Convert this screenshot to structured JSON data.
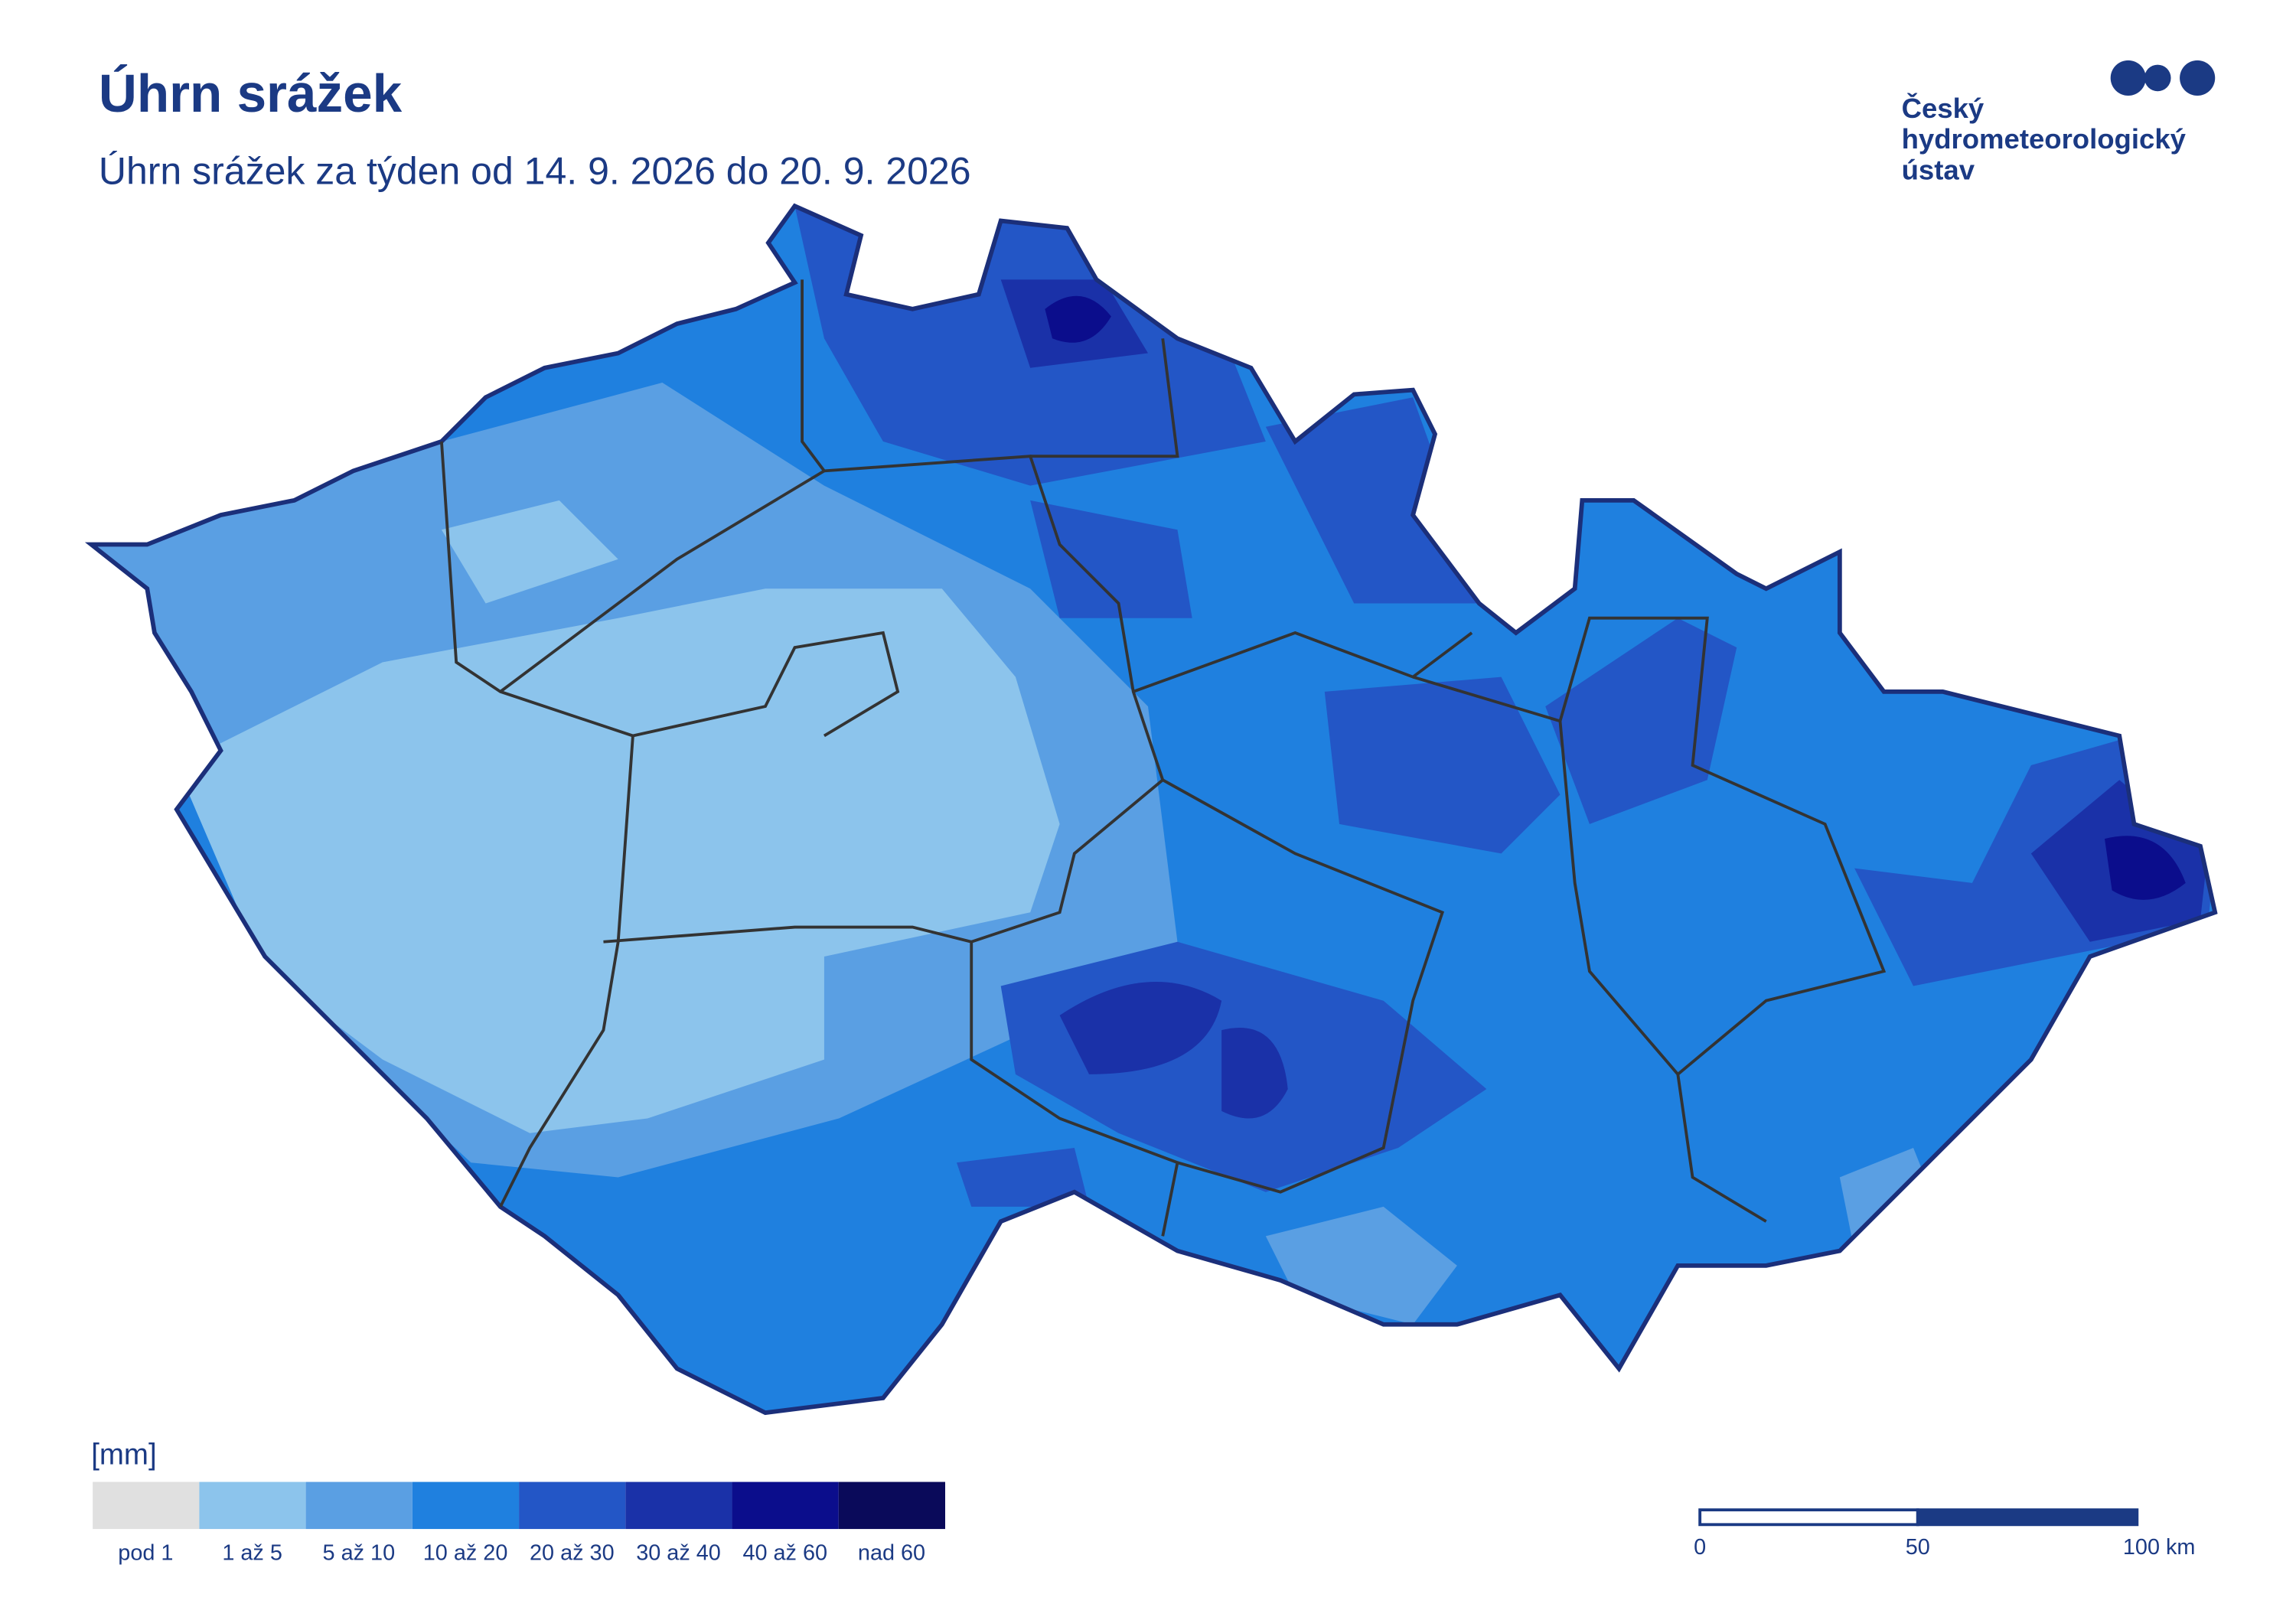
{
  "header": {
    "title": "Úhrn srážek",
    "subtitle": "Úhrn srážek za týden od 14. 9. 2026 do 20. 9. 2026"
  },
  "logo": {
    "lines": [
      "Český",
      "hydrometeorologický",
      "ústav"
    ]
  },
  "legend": {
    "unit": "[mm]",
    "items": [
      {
        "label": "pod 1",
        "color": "#e0e0e0"
      },
      {
        "label": "1 až 5",
        "color": "#8cc4ec"
      },
      {
        "label": "5 až 10",
        "color": "#5a9fe3"
      },
      {
        "label": "10 až 20",
        "color": "#1f80df"
      },
      {
        "label": "20 až 30",
        "color": "#2356c6"
      },
      {
        "label": "30 až 40",
        "color": "#1a31a8"
      },
      {
        "label": "40 až 60",
        "color": "#0b0d8c"
      },
      {
        "label": "nad 60",
        "color": "#0a0a5a"
      }
    ]
  },
  "scale_bar": {
    "labels": [
      "0",
      "50",
      "100 km"
    ]
  }
}
